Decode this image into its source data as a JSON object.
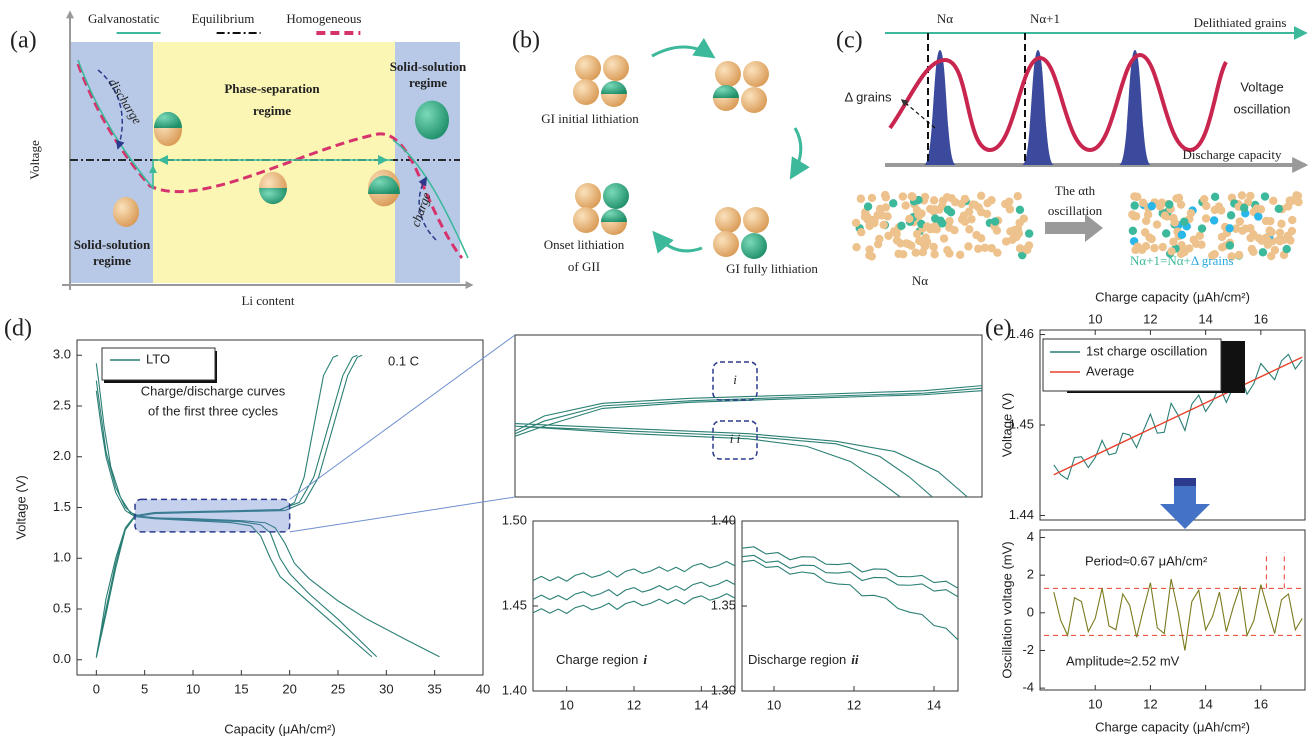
{
  "panels": {
    "a": {
      "label": "(a)",
      "legend": [
        {
          "name": "Galvanostatic",
          "color": "#3cb89a"
        },
        {
          "name": "Equilibrium",
          "color": "#111111"
        },
        {
          "name": "Homogeneous",
          "color": "#d6336c"
        }
      ],
      "center_region": [
        "Phase-separation",
        "regime"
      ],
      "right_region": [
        "Solid-solution",
        "regime"
      ],
      "left_region": [
        "Solid-solution",
        "regime"
      ],
      "discharge": "discharge",
      "charge": "charge",
      "xlabel": "Li content",
      "ylabel": "Voltage"
    },
    "b": {
      "label": "(b)",
      "steps": [
        "GI initial lithiation",
        "GI fully lithiation",
        "Onset lithiation",
        "of GII"
      ]
    },
    "c": {
      "label": "(c)",
      "n_alpha": "Nα",
      "n_alpha1": "Nα+1",
      "delithiated": "Delithiated grains",
      "delta": "Δ grains",
      "voltage_osc": [
        "Voltage",
        "oscillation"
      ],
      "x_axis": "Discharge capacity",
      "step": [
        "The αth",
        "oscillation"
      ],
      "bottom_left": "Nα",
      "bottom_right": [
        "Nα+1=Nα+",
        "Δ grains"
      ]
    }
  },
  "chart_data": [
    {
      "type": "line",
      "panel_label": "(d)",
      "xlabel": "Capacity (μAh/cm²)",
      "ylabel": "Voltage (V)",
      "legend": "upper left",
      "annotations": [
        "Charge/discharge curves",
        "of the first three cycles",
        "0.1 C"
      ],
      "xlim": [
        -2,
        40
      ],
      "ylim": [
        -0.15,
        3.15
      ],
      "xticks": [
        0,
        5,
        10,
        15,
        20,
        25,
        30,
        35,
        40
      ],
      "yticks": [
        {
          "value": 0,
          "label": "0.0"
        },
        0.5,
        {
          "value": 1,
          "label": "1.0"
        },
        1.5,
        {
          "value": 2,
          "label": "2.0"
        },
        2.5,
        {
          "value": 3,
          "label": "3.0"
        }
      ],
      "series": [
        {
          "name": "LTO",
          "color": "#2a7f75",
          "x": [
            0,
            0.3,
            0.8,
            1.5,
            2.5,
            3.5,
            5,
            10,
            15,
            17.5,
            18.5,
            19.5,
            20.5,
            22,
            25,
            28,
            32,
            35.5,
            null,
            0,
            0.5,
            1,
            2,
            3,
            4,
            6,
            10,
            15,
            17,
            18,
            19,
            20,
            22,
            25,
            29,
            null,
            0,
            0.5,
            1,
            2,
            3,
            4,
            6,
            10,
            14,
            16,
            17,
            18,
            19,
            21,
            24,
            28.5,
            null,
            0,
            0.5,
            1,
            2,
            3,
            4,
            6,
            10,
            15,
            19,
            20.5,
            21.5,
            22.5,
            23.5,
            24.5,
            25,
            null,
            0,
            1,
            2,
            3,
            4,
            6,
            10,
            15,
            19,
            21,
            22.5,
            24,
            25.5,
            26.5,
            27,
            null,
            0,
            1,
            2,
            3,
            4,
            6,
            10,
            15,
            19.5,
            21.5,
            23,
            24.5,
            26,
            27,
            27.5
          ],
          "values": [
            2.92,
            2.7,
            2.3,
            1.9,
            1.6,
            1.45,
            1.4,
            1.39,
            1.37,
            1.35,
            1.3,
            1.15,
            0.95,
            0.8,
            0.58,
            0.4,
            0.2,
            0.03,
            null,
            2.75,
            2.4,
            2.05,
            1.7,
            1.5,
            1.42,
            1.4,
            1.38,
            1.36,
            1.33,
            1.25,
            1,
            0.85,
            0.65,
            0.4,
            0.03,
            null,
            2.65,
            2.3,
            2,
            1.65,
            1.47,
            1.41,
            1.39,
            1.37,
            1.35,
            1.32,
            1.22,
            1,
            0.82,
            0.65,
            0.4,
            0.03,
            null,
            0.03,
            0.3,
            0.6,
            1,
            1.3,
            1.42,
            1.44,
            1.45,
            1.46,
            1.47,
            1.55,
            1.8,
            2.3,
            2.8,
            2.98,
            3,
            null,
            0.02,
            0.5,
            0.95,
            1.3,
            1.42,
            1.45,
            1.46,
            1.47,
            1.48,
            1.55,
            1.8,
            2.3,
            2.8,
            2.98,
            3,
            null,
            0.02,
            0.45,
            0.9,
            1.28,
            1.41,
            1.44,
            1.45,
            1.46,
            1.47,
            1.55,
            1.8,
            2.3,
            2.8,
            2.98,
            3
          ]
        }
      ]
    },
    {
      "type": "line",
      "xlim": [
        4,
        20
      ],
      "ylim": [
        1.26,
        1.58
      ],
      "annotations": [
        "i",
        "i i"
      ],
      "series": [
        {
          "color": "#2a7f75",
          "x": [
            4,
            5,
            7,
            10,
            14,
            18,
            20,
            null,
            4,
            5,
            7,
            10,
            14,
            18,
            20,
            null,
            4,
            5,
            7,
            10,
            14,
            18,
            20,
            null,
            4,
            8,
            12,
            15,
            17,
            18.5,
            19.5,
            null,
            4,
            8,
            12,
            15,
            16.5,
            17.5,
            18.3,
            null,
            4,
            8,
            12,
            14,
            15.5,
            16.5,
            17.2
          ],
          "values": [
            1.39,
            1.42,
            1.445,
            1.455,
            1.462,
            1.47,
            1.48,
            null,
            1.385,
            1.41,
            1.44,
            1.45,
            1.458,
            1.465,
            1.475,
            null,
            1.38,
            1.4,
            1.435,
            1.447,
            1.455,
            1.462,
            1.47,
            null,
            1.405,
            1.395,
            1.385,
            1.37,
            1.35,
            1.31,
            1.26,
            null,
            1.4,
            1.39,
            1.38,
            1.365,
            1.34,
            1.3,
            1.26,
            null,
            1.4,
            1.385,
            1.375,
            1.36,
            1.33,
            1.29,
            1.26
          ]
        }
      ]
    },
    {
      "type": "line",
      "annotations": [
        "Charge region",
        "i"
      ],
      "xlim": [
        9,
        15
      ],
      "ylim": [
        1.4,
        1.5
      ],
      "xticks": [
        10,
        12,
        14
      ],
      "yticks": [
        {
          "value": 1.4,
          "label": "1.40"
        },
        1.45,
        {
          "value": 1.5,
          "label": "1.50"
        }
      ],
      "x": [
        9,
        9.25,
        9.5,
        9.75,
        10,
        10.25,
        10.5,
        10.75,
        11,
        11.25,
        11.5,
        11.75,
        12,
        12.25,
        12.5,
        12.75,
        13,
        13.25,
        13.5,
        13.75,
        14,
        14.25,
        14.5,
        14.75,
        15
      ],
      "series": [
        {
          "color": "#2a7f75",
          "values": [
            1.465,
            1.4674,
            1.4648,
            1.4672,
            1.4646,
            1.468,
            1.4694,
            1.4668,
            1.4682,
            1.4706,
            1.467,
            1.4704,
            1.4718,
            1.4692,
            1.4706,
            1.473,
            1.4704,
            1.4728,
            1.4702,
            1.4736,
            1.475,
            1.4724,
            1.4738,
            1.4762,
            1.4736
          ]
        },
        {
          "color": "#2a7f75",
          "values": [
            1.454,
            1.4564,
            1.4538,
            1.4562,
            1.4536,
            1.457,
            1.4584,
            1.4558,
            1.4572,
            1.4596,
            1.456,
            1.4594,
            1.4608,
            1.4582,
            1.4596,
            1.462,
            1.4594,
            1.4618,
            1.4592,
            1.4626,
            1.464,
            1.4614,
            1.4628,
            1.4652,
            1.4626
          ]
        },
        {
          "color": "#2a7f75",
          "values": [
            1.446,
            1.4484,
            1.4458,
            1.4482,
            1.4456,
            1.449,
            1.4504,
            1.4478,
            1.4492,
            1.4516,
            1.448,
            1.4514,
            1.4528,
            1.4502,
            1.4516,
            1.454,
            1.4514,
            1.4538,
            1.4512,
            1.4546,
            1.456,
            1.4534,
            1.4548,
            1.4572,
            1.4546
          ]
        }
      ]
    },
    {
      "type": "line",
      "annotations": [
        "Discharge region",
        "ii"
      ],
      "xlim": [
        9.2,
        14.6
      ],
      "ylim": [
        1.3,
        1.4
      ],
      "xticks": [
        10,
        12,
        14
      ],
      "yticks": [
        {
          "value": 1.3,
          "label": "1.30"
        },
        1.35,
        {
          "value": 1.4,
          "label": "1.40"
        }
      ],
      "x": [
        9.2,
        9.5,
        9.8,
        10.1,
        10.4,
        10.7,
        11,
        11.3,
        11.6,
        11.9,
        12.2,
        12.5,
        12.8,
        13.1,
        13.4,
        13.7,
        14,
        14.3,
        14.6
      ],
      "series": [
        {
          "color": "#2a7f75",
          "values": [
            1.384,
            1.3848,
            1.3806,
            1.3814,
            1.3772,
            1.379,
            1.3788,
            1.3746,
            1.3744,
            1.3752,
            1.37,
            1.3718,
            1.3716,
            1.3674,
            1.3672,
            1.368,
            1.3638,
            1.3646,
            1.3604
          ]
        },
        {
          "color": "#2a7f75",
          "values": [
            1.379,
            1.3798,
            1.3756,
            1.3764,
            1.3722,
            1.374,
            1.3738,
            1.3696,
            1.3694,
            1.3702,
            1.365,
            1.3668,
            1.3666,
            1.3624,
            1.3622,
            1.363,
            1.3588,
            1.3596,
            1.3554
          ]
        },
        {
          "color": "#2a7f75",
          "values": [
            1.376,
            1.3769,
            1.3727,
            1.3733,
            1.3687,
            1.37,
            1.3691,
            1.3641,
            1.3629,
            1.3625,
            1.356,
            1.3563,
            1.3545,
            1.3485,
            1.3463,
            1.345,
            1.3385,
            1.3369,
            1.3301
          ]
        }
      ]
    },
    {
      "type": "line",
      "panel_label": "(e)",
      "xlabel": "Charge capacity (μAh/cm²)",
      "xaxis": "top",
      "ylabel": "Voltage (V)",
      "legend": "upper left",
      "xlim": [
        8,
        17.6
      ],
      "ylim": [
        1.4395,
        1.4605
      ],
      "xticks": [
        10,
        12,
        14,
        16
      ],
      "yticks": [
        1.44,
        1.45,
        1.46
      ],
      "x": [
        8.5,
        8.75,
        9,
        9.25,
        9.5,
        9.75,
        10,
        10.25,
        10.5,
        10.75,
        11,
        11.25,
        11.5,
        11.75,
        12,
        12.25,
        12.5,
        12.75,
        13,
        13.25,
        13.5,
        13.75,
        14,
        14.25,
        14.5,
        14.75,
        15,
        15.25,
        15.5,
        15.75,
        16,
        16.25,
        16.5,
        16.75,
        17,
        17.25,
        17.5
      ],
      "series": [
        {
          "name": "1st charge oscillation",
          "color": "#2a7f75",
          "values": [
            1.4456,
            1.4445,
            1.444,
            1.4464,
            1.4465,
            1.4453,
            1.4464,
            1.4483,
            1.4467,
            1.4469,
            1.4491,
            1.4489,
            1.4475,
            1.4494,
            1.4512,
            1.4491,
            1.4492,
            1.4524,
            1.4511,
            1.4494,
            1.4523,
            1.4533,
            1.4515,
            1.4526,
            1.4543,
            1.4525,
            1.4542,
            1.4556,
            1.4534,
            1.4546,
            1.4568,
            1.4559,
            1.455,
            1.4571,
            1.4578,
            1.4562,
            1.4572
          ]
        },
        {
          "name": "Average",
          "color": "#e8412c",
          "x": [
            8.5,
            17.5
          ],
          "values": [
            1.4445,
            1.4575
          ]
        }
      ]
    },
    {
      "type": "line",
      "xlabel": "Charge capacity (μAh/cm²)",
      "ylabel": "Oscillation voltage (mV)",
      "annotations": [
        "Period≈0.67 μAh/cm²",
        "Amplitude≈2.52 mV"
      ],
      "xlim": [
        8,
        17.6
      ],
      "ylim": [
        -4.1,
        4.4
      ],
      "xticks": [
        10,
        12,
        14,
        16
      ],
      "yticks": [
        -4,
        -2,
        0,
        2,
        4
      ],
      "hlines": [
        1.3,
        -1.2
      ],
      "vlines": [
        16.2,
        16.85
      ],
      "ref_color": "#e8412c",
      "x": [
        8.5,
        8.75,
        9,
        9.25,
        9.5,
        9.75,
        10,
        10.25,
        10.5,
        10.75,
        11,
        11.25,
        11.5,
        11.75,
        12,
        12.25,
        12.5,
        12.75,
        13,
        13.25,
        13.5,
        13.75,
        14,
        14.25,
        14.5,
        14.75,
        15,
        15.25,
        15.5,
        15.75,
        16,
        16.25,
        16.5,
        16.75,
        17,
        17.25,
        17.5
      ],
      "series": [
        {
          "color": "#7a7a1e",
          "values": [
            1.1,
            -0.4,
            -1.2,
            0.8,
            0.6,
            -1,
            -0.3,
            1.3,
            -0.7,
            -0.9,
            1,
            0.4,
            -1.3,
            0.2,
            1.6,
            -0.8,
            -1.1,
            1.8,
            0.1,
            -2,
            0.6,
            1.2,
            -0.9,
            -0.2,
            1.1,
            -1,
            0.3,
            1.4,
            -1.2,
            -0.4,
            1.5,
            0.2,
            -1.1,
            0.7,
            1,
            -0.9,
            -0.3
          ]
        }
      ]
    }
  ]
}
